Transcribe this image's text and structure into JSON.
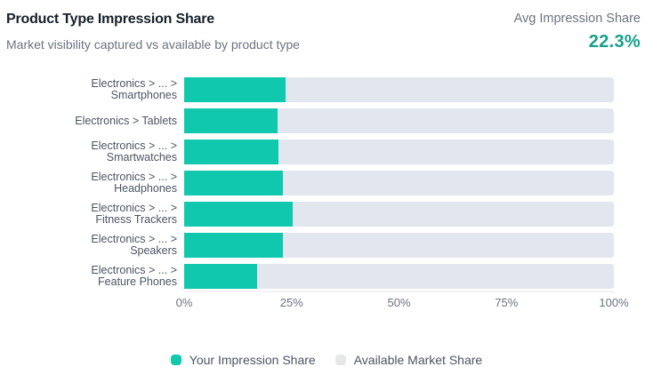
{
  "header": {
    "title": "Product Type Impression Share",
    "subtitle": "Market visibility captured vs available by product type"
  },
  "kpi": {
    "label": "Avg Impression Share",
    "value": "22.3%"
  },
  "colors": {
    "your_share": "#10c8ad",
    "available": "#e2e7ef",
    "kpi": "#14a08a"
  },
  "chart_data": {
    "type": "bar",
    "orientation": "horizontal",
    "stacked": true,
    "title": "Product Type Impression Share",
    "subtitle": "Market visibility captured vs available by product type",
    "categories": [
      [
        "Electronics > ... >",
        "Smartphones"
      ],
      [
        "Electronics > Tablets"
      ],
      [
        "Electronics > ... >",
        "Smartwatches"
      ],
      [
        "Electronics > ... >",
        "Headphones"
      ],
      [
        "Electronics > ... >",
        "Fitness Trackers"
      ],
      [
        "Electronics > ... >",
        "Speakers"
      ],
      [
        "Electronics > ... >",
        "Feature Phones"
      ]
    ],
    "series": [
      {
        "name": "Your Impression Share",
        "color": "#10c8ad",
        "values": [
          23.6,
          21.7,
          22.0,
          23.0,
          25.3,
          23.0,
          17.0
        ]
      },
      {
        "name": "Available Market Share",
        "color": "#e2e7ef",
        "values": [
          76.4,
          78.3,
          78.0,
          77.0,
          74.7,
          77.0,
          83.0
        ]
      }
    ],
    "xlabel": "",
    "ylabel": "",
    "xlim": [
      0,
      100
    ],
    "x_ticks": [
      "0%",
      "25%",
      "50%",
      "75%",
      "100%"
    ],
    "grid": false,
    "legend_position": "bottom"
  },
  "legend": [
    {
      "label": "Your Impression Share"
    },
    {
      "label": "Available Market Share"
    }
  ]
}
